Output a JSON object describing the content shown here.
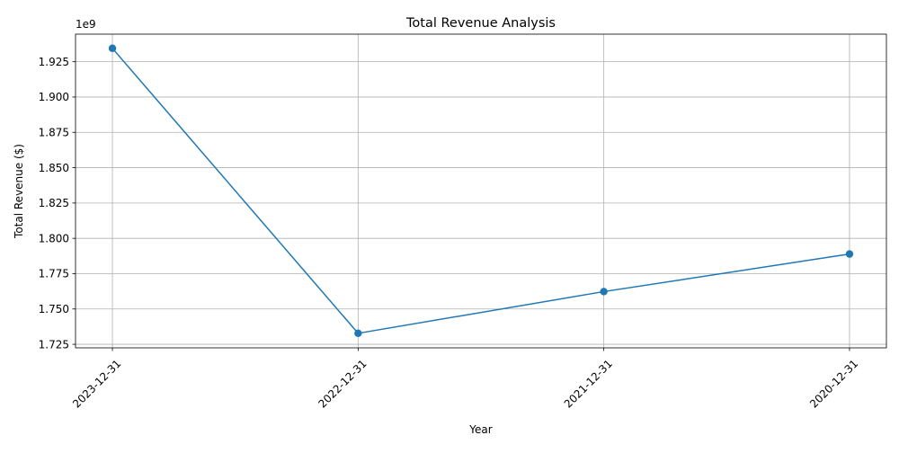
{
  "chart_data": {
    "type": "line",
    "title": "Total Revenue Analysis",
    "xlabel": "Year",
    "ylabel": "Total Revenue ($)",
    "y_offset_label": "1e9",
    "categories": [
      "2023-12-31",
      "2022-12-31",
      "2021-12-31",
      "2020-12-31"
    ],
    "series": [
      {
        "values": [
          1934500000,
          1732800000,
          1762300000,
          1788900000
        ],
        "color": "#1f77b4",
        "marker": "circle"
      }
    ],
    "ylim": [
      1.7225,
      1.9445
    ],
    "y_scale_factor": 1000000000,
    "y_ticks": [
      1.725,
      1.75,
      1.775,
      1.8,
      1.825,
      1.85,
      1.875,
      1.9,
      1.925
    ],
    "y_tick_labels": [
      "1.725",
      "1.750",
      "1.775",
      "1.800",
      "1.825",
      "1.850",
      "1.875",
      "1.900",
      "1.925"
    ],
    "x_tick_rotation": 45,
    "grid": true
  }
}
